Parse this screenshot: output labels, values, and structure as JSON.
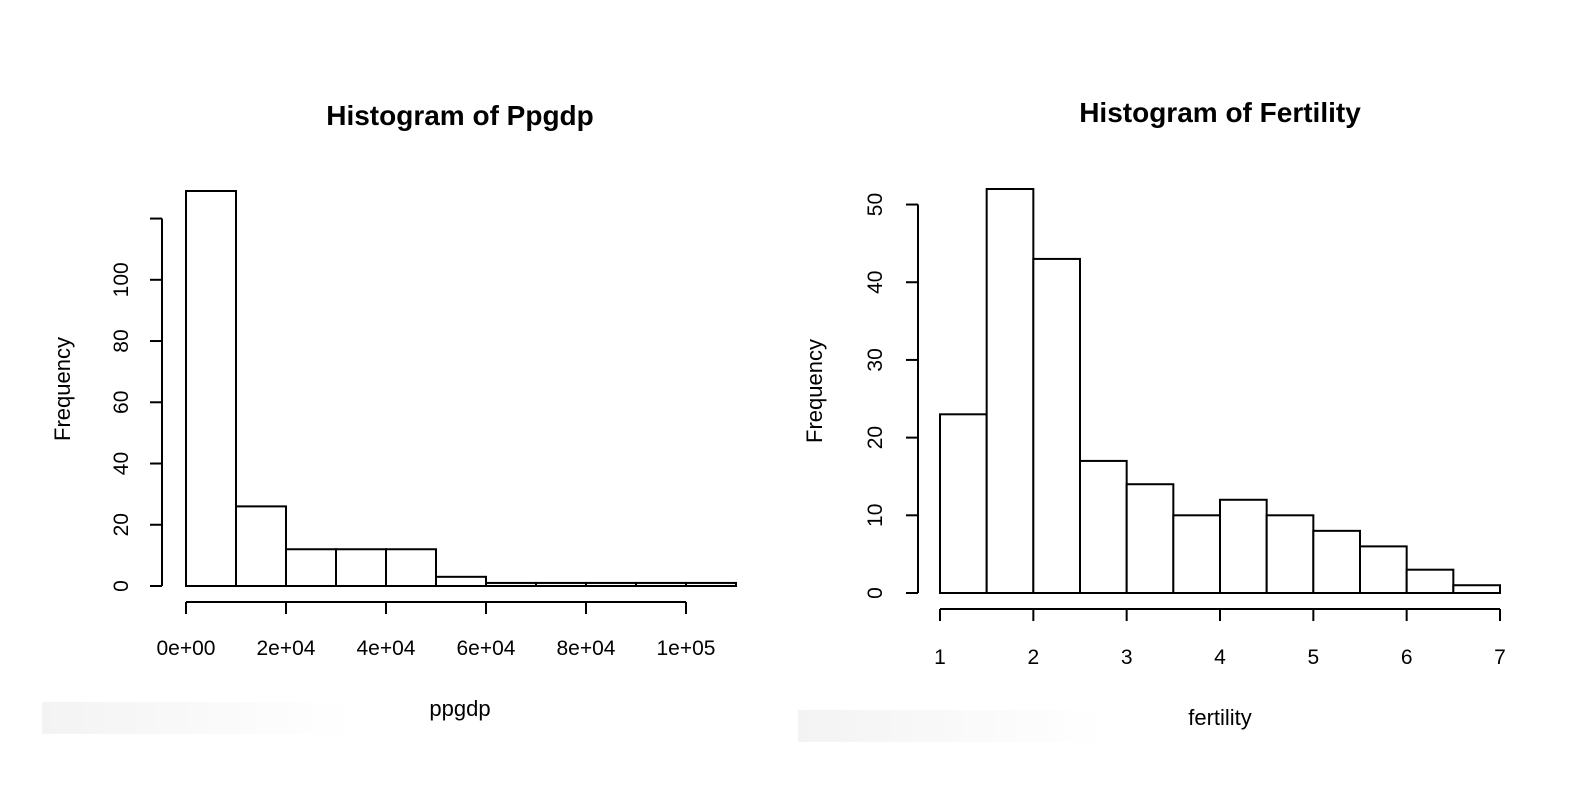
{
  "chart_data": [
    {
      "type": "bar",
      "title": "Histogram of Ppgdp",
      "xlabel": "ppgdp",
      "ylabel": "Frequency",
      "bin_edges": [
        0,
        10000,
        20000,
        30000,
        40000,
        50000,
        60000,
        70000,
        80000,
        90000,
        100000,
        110000
      ],
      "values": [
        129,
        26,
        12,
        12,
        12,
        3,
        1,
        1,
        1,
        1,
        1
      ],
      "x_ticks": [
        0,
        20000,
        40000,
        60000,
        80000,
        100000
      ],
      "x_tick_labels": [
        "0e+00",
        "2e+04",
        "4e+04",
        "6e+04",
        "8e+04",
        "1e+05"
      ],
      "y_ticks": [
        0,
        20,
        40,
        60,
        80,
        100,
        120
      ],
      "y_tick_labels": [
        "0",
        "20",
        "40",
        "60",
        "80",
        "100",
        ""
      ],
      "xlim": [
        0,
        110000
      ],
      "ylim": [
        0,
        129
      ],
      "grid": false
    },
    {
      "type": "bar",
      "title": "Histogram of Fertility",
      "xlabel": "fertility",
      "ylabel": "Frequency",
      "bin_edges": [
        1,
        1.5,
        2,
        2.5,
        3,
        3.5,
        4,
        4.5,
        5,
        5.5,
        6,
        6.5,
        7
      ],
      "values": [
        23,
        52,
        43,
        17,
        14,
        10,
        12,
        10,
        8,
        6,
        3,
        1
      ],
      "x_ticks": [
        1,
        2,
        3,
        4,
        5,
        6,
        7
      ],
      "x_tick_labels": [
        "1",
        "2",
        "3",
        "4",
        "5",
        "6",
        "7"
      ],
      "y_ticks": [
        0,
        10,
        20,
        30,
        40,
        50
      ],
      "y_tick_labels": [
        "0",
        "10",
        "20",
        "30",
        "40",
        "50"
      ],
      "xlim": [
        1,
        7
      ],
      "ylim": [
        0,
        52
      ],
      "grid": false
    }
  ]
}
